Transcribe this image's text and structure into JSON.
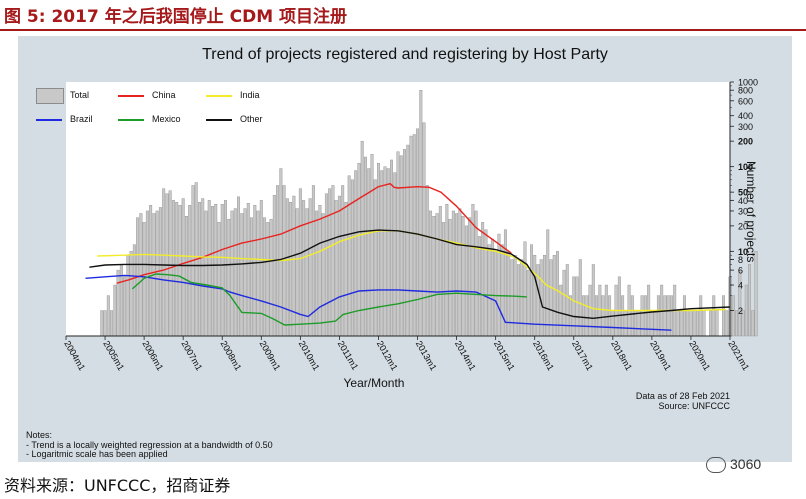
{
  "figure": {
    "caption": "图 5:  2017 年之后我国停止 CDM 项目注册",
    "source": "资料来源：UNFCCC，招商证券",
    "watermark": "3060"
  },
  "chart_data": {
    "type": "bar",
    "title": "Trend of projects registered and registering by Host Party",
    "xlabel": "Year/Month",
    "ylabel": "Number of projects",
    "yscale": "log",
    "ylim": [
      1,
      1000
    ],
    "y_ticks": [
      2,
      4,
      6,
      8,
      10,
      20,
      30,
      40,
      50,
      100,
      200,
      300,
      400,
      600,
      800,
      1000
    ],
    "y_tick_labels": [
      "2",
      "4",
      "6",
      "8",
      "10",
      "20",
      "30",
      "40",
      "50",
      "100",
      "200",
      "300",
      "400",
      "600",
      "800",
      "1000"
    ],
    "y_tick_bold": [
      10,
      50,
      100,
      200
    ],
    "x_ticks": [
      "2004m1",
      "2005m1",
      "2006m1",
      "2007m1",
      "2008m1",
      "2009m1",
      "2010m1",
      "2011m1",
      "2012m1",
      "2013m1",
      "2014m1",
      "2015m1",
      "2016m1",
      "2017m1",
      "2018m1",
      "2019m1",
      "2020m1",
      "2021m1"
    ],
    "x_start": 2004.0,
    "x_end": 2021.0,
    "bar_series": {
      "name": "Total",
      "start": 2004.917,
      "step_months": 1,
      "values": [
        2,
        2,
        3,
        2,
        4,
        6,
        7,
        5,
        9,
        10,
        12,
        25,
        28,
        22,
        30,
        35,
        28,
        30,
        33,
        55,
        48,
        52,
        40,
        38,
        35,
        42,
        26,
        35,
        60,
        65,
        38,
        42,
        30,
        40,
        34,
        36,
        22,
        36,
        40,
        24,
        30,
        32,
        44,
        28,
        32,
        37,
        25,
        35,
        30,
        40,
        25,
        22,
        24,
        46,
        60,
        95,
        60,
        42,
        38,
        45,
        32,
        55,
        40,
        32,
        42,
        60,
        30,
        35,
        28,
        48,
        55,
        60,
        40,
        45,
        60,
        38,
        78,
        70,
        90,
        110,
        200,
        130,
        95,
        140,
        70,
        110,
        90,
        100,
        95,
        120,
        85,
        150,
        135,
        160,
        180,
        230,
        240,
        280,
        800,
        330,
        60,
        30,
        26,
        28,
        34,
        22,
        36,
        24,
        30,
        28,
        32,
        26,
        20,
        25,
        36,
        30,
        15,
        22,
        18,
        12,
        14,
        10,
        16,
        12,
        18,
        10,
        8,
        9,
        7,
        8,
        13,
        6,
        12,
        9,
        7,
        8,
        9,
        18,
        8,
        9,
        10,
        4,
        6,
        7,
        3,
        5,
        5,
        8,
        3,
        3,
        4,
        7,
        3,
        4,
        3,
        4,
        3,
        2,
        4,
        5,
        3,
        2,
        4,
        3,
        2,
        2,
        3,
        3,
        4,
        2,
        2,
        3,
        4,
        3,
        3,
        3,
        4,
        2,
        2,
        3,
        2,
        2,
        2,
        2,
        3,
        2,
        1,
        2,
        3,
        2,
        1,
        3,
        2,
        5,
        3,
        2,
        6,
        2,
        4,
        7,
        2,
        10
      ]
    },
    "series": [
      {
        "name": "China",
        "color": "#e8231f",
        "points": [
          [
            2005.3,
            4.2
          ],
          [
            2005.6,
            4.6
          ],
          [
            2006.0,
            5.3
          ],
          [
            2006.5,
            6.0
          ],
          [
            2007.0,
            7.2
          ],
          [
            2007.5,
            8.5
          ],
          [
            2008.0,
            10.5
          ],
          [
            2008.5,
            12.5
          ],
          [
            2009.0,
            14
          ],
          [
            2009.5,
            16
          ],
          [
            2010.0,
            20
          ],
          [
            2010.5,
            24
          ],
          [
            2011.0,
            30
          ],
          [
            2011.5,
            42
          ],
          [
            2012.0,
            58
          ],
          [
            2012.3,
            63
          ],
          [
            2012.4,
            57
          ],
          [
            2012.5,
            56
          ],
          [
            2013.0,
            58
          ],
          [
            2013.3,
            57
          ],
          [
            2013.6,
            50
          ],
          [
            2014.0,
            34
          ],
          [
            2014.5,
            19
          ],
          [
            2015.0,
            13
          ],
          [
            2015.4,
            9.5
          ]
        ]
      },
      {
        "name": "India",
        "color": "#f2ec2b",
        "points": [
          [
            2004.8,
            8.8
          ],
          [
            2005.5,
            9.0
          ],
          [
            2006.0,
            9.2
          ],
          [
            2006.5,
            9.0
          ],
          [
            2007.0,
            8.8
          ],
          [
            2007.5,
            8.6
          ],
          [
            2008.0,
            8.5
          ],
          [
            2008.5,
            8.2
          ],
          [
            2009.0,
            8.0
          ],
          [
            2009.5,
            7.8
          ],
          [
            2010.0,
            8.2
          ],
          [
            2010.5,
            10
          ],
          [
            2011.0,
            13
          ],
          [
            2011.5,
            15.5
          ],
          [
            2012.0,
            17.5
          ],
          [
            2012.5,
            17.5
          ],
          [
            2013.0,
            16
          ],
          [
            2013.5,
            14
          ],
          [
            2014.0,
            12.5
          ],
          [
            2014.5,
            11
          ],
          [
            2015.0,
            10
          ],
          [
            2015.5,
            8.5
          ],
          [
            2016.0,
            5.5
          ],
          [
            2016.3,
            4.0
          ],
          [
            2016.6,
            3.4
          ],
          [
            2017.0,
            2.6
          ],
          [
            2017.5,
            2.1
          ],
          [
            2018.0,
            2.0
          ],
          [
            2020.0,
            2.0
          ],
          [
            2020.9,
            2.05
          ]
        ]
      },
      {
        "name": "Other",
        "color": "#111111",
        "points": [
          [
            2004.6,
            6.5
          ],
          [
            2005.0,
            6.9
          ],
          [
            2005.5,
            7.0
          ],
          [
            2006.0,
            7.0
          ],
          [
            2006.5,
            6.9
          ],
          [
            2007.0,
            6.8
          ],
          [
            2007.5,
            6.8
          ],
          [
            2008.0,
            6.9
          ],
          [
            2008.5,
            7.1
          ],
          [
            2009.0,
            7.4
          ],
          [
            2009.5,
            8.0
          ],
          [
            2010.0,
            9.5
          ],
          [
            2010.5,
            12.5
          ],
          [
            2011.0,
            15
          ],
          [
            2011.5,
            17
          ],
          [
            2012.0,
            17.8
          ],
          [
            2012.5,
            17.5
          ],
          [
            2013.0,
            16
          ],
          [
            2013.5,
            14
          ],
          [
            2014.0,
            12
          ],
          [
            2014.5,
            11.3
          ],
          [
            2015.0,
            10.5
          ],
          [
            2015.4,
            9.3
          ],
          [
            2015.8,
            7.0
          ],
          [
            2016.0,
            5.0
          ],
          [
            2016.2,
            2.2
          ],
          [
            2016.6,
            1.9
          ],
          [
            2017.0,
            1.7
          ],
          [
            2017.5,
            1.62
          ],
          [
            2018.0,
            1.72
          ],
          [
            2018.5,
            1.82
          ],
          [
            2019.0,
            1.92
          ],
          [
            2019.5,
            2.0
          ],
          [
            2020.0,
            2.1
          ],
          [
            2021.0,
            2.2
          ]
        ]
      },
      {
        "name": "Brazil",
        "color": "#1f2ae0",
        "points": [
          [
            2004.5,
            4.8
          ],
          [
            2005.0,
            5.0
          ],
          [
            2005.5,
            5.2
          ],
          [
            2006.0,
            5.0
          ],
          [
            2006.5,
            4.6
          ],
          [
            2007.0,
            4.3
          ],
          [
            2007.5,
            3.9
          ],
          [
            2008.0,
            3.6
          ],
          [
            2008.2,
            3.3
          ],
          [
            2008.5,
            3.0
          ],
          [
            2009.0,
            2.6
          ],
          [
            2009.5,
            2.2
          ],
          [
            2010.0,
            1.8
          ],
          [
            2010.2,
            1.7
          ],
          [
            2010.5,
            2.2
          ],
          [
            2011.0,
            2.9
          ],
          [
            2011.5,
            3.4
          ],
          [
            2012.0,
            3.5
          ],
          [
            2012.5,
            3.5
          ],
          [
            2013.0,
            3.4
          ],
          [
            2013.5,
            3.3
          ],
          [
            2014.0,
            3.4
          ],
          [
            2014.5,
            3.3
          ],
          [
            2015.0,
            2.6
          ],
          [
            2015.25,
            1.45
          ],
          [
            2016.0,
            1.38
          ],
          [
            2017.0,
            1.32
          ],
          [
            2018.0,
            1.26
          ],
          [
            2019.0,
            1.2
          ],
          [
            2019.5,
            1.17
          ]
        ]
      },
      {
        "name": "Mexico",
        "color": "#1e9c2a",
        "points": [
          [
            2005.7,
            3.6
          ],
          [
            2006.0,
            4.8
          ],
          [
            2006.3,
            5.4
          ],
          [
            2006.6,
            5.3
          ],
          [
            2006.9,
            5.1
          ],
          [
            2007.2,
            4.3
          ],
          [
            2007.6,
            4.0
          ],
          [
            2008.0,
            3.7
          ],
          [
            2008.2,
            3.0
          ],
          [
            2008.5,
            1.9
          ],
          [
            2009.0,
            1.85
          ],
          [
            2009.3,
            1.6
          ],
          [
            2009.6,
            1.35
          ],
          [
            2010.0,
            1.38
          ],
          [
            2010.5,
            1.42
          ],
          [
            2010.9,
            1.5
          ],
          [
            2011.1,
            1.8
          ],
          [
            2011.5,
            2.0
          ],
          [
            2012.0,
            2.2
          ],
          [
            2012.5,
            2.4
          ],
          [
            2013.0,
            2.7
          ],
          [
            2013.5,
            3.1
          ],
          [
            2014.0,
            3.2
          ],
          [
            2014.5,
            3.1
          ],
          [
            2015.0,
            3.0
          ],
          [
            2015.5,
            2.95
          ],
          [
            2015.8,
            2.9
          ]
        ]
      }
    ],
    "legend": [
      {
        "label": "Total",
        "kind": "bar"
      },
      {
        "label": "China",
        "kind": "line",
        "color": "#e8231f"
      },
      {
        "label": "India",
        "kind": "line",
        "color": "#f2ec2b"
      },
      {
        "label": "Brazil",
        "kind": "line",
        "color": "#1f2ae0"
      },
      {
        "label": "Mexico",
        "kind": "line",
        "color": "#1e9c2a"
      },
      {
        "label": "Other",
        "kind": "line",
        "color": "#111111"
      }
    ],
    "legend_position": "top-left",
    "annotations": {
      "as_of": "Data as of 28 Feb 2021",
      "source": "Source: UNFCCC",
      "notes_title": "Notes:",
      "note_1": " - Trend is a locally weighted regression at a bandwidth of 0.50",
      "note_2": " - Logaritmic scale has been applied"
    }
  }
}
